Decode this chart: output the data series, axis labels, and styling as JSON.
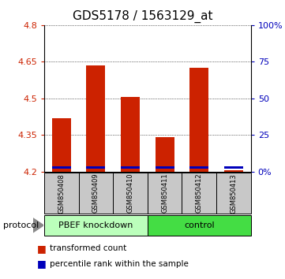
{
  "title": "GDS5178 / 1563129_at",
  "samples": [
    "GSM850408",
    "GSM850409",
    "GSM850410",
    "GSM850411",
    "GSM850412",
    "GSM850413"
  ],
  "red_values": [
    4.42,
    4.635,
    4.505,
    4.34,
    4.625,
    4.205
  ],
  "blue_bottom": [
    4.213,
    4.213,
    4.213,
    4.213,
    4.213,
    4.213
  ],
  "blue_heights": [
    0.01,
    0.01,
    0.01,
    0.008,
    0.01,
    0.01
  ],
  "bar_bottom": 4.2,
  "ylim_min": 4.2,
  "ylim_max": 4.8,
  "yticks_left": [
    4.2,
    4.35,
    4.5,
    4.65,
    4.8
  ],
  "yticks_right_labels": [
    "0%",
    "25",
    "50",
    "75",
    "100%"
  ],
  "yticks_right_vals": [
    4.2,
    4.35,
    4.5,
    4.65,
    4.8
  ],
  "group1_label": "PBEF knockdown",
  "group2_label": "control",
  "protocol_label": "protocol",
  "legend_red": "transformed count",
  "legend_blue": "percentile rank within the sample",
  "bar_width": 0.55,
  "red_color": "#CC2200",
  "blue_color": "#0000BB",
  "left_tick_color": "#CC2200",
  "right_tick_color": "#0000BB",
  "sample_bg_color": "#C8C8C8",
  "group1_color": "#BBFFBB",
  "group2_color": "#44DD44",
  "title_fontsize": 11,
  "tick_fontsize": 8,
  "sample_fontsize": 6,
  "group_fontsize": 8,
  "legend_fontsize": 7.5
}
